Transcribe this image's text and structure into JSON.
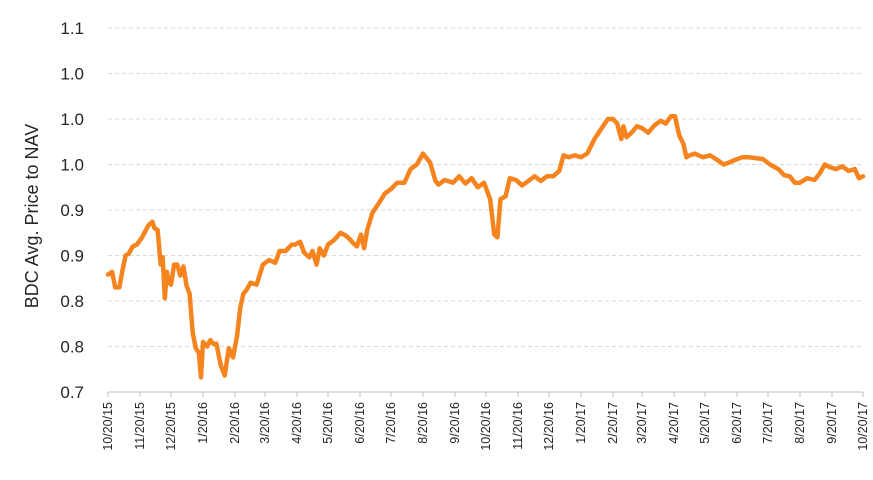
{
  "chart_data": {
    "type": "line",
    "title": "",
    "xlabel": "",
    "ylabel": "BDC Avg. Price to NAV",
    "ylim": [
      0.7,
      1.1
    ],
    "y_tick_values": [
      0.7,
      0.75,
      0.8,
      0.85,
      0.9,
      0.95,
      1.0,
      1.05,
      1.1
    ],
    "y_tick_labels": [
      "0.7",
      "0.8",
      "0.8",
      "0.9",
      "0.9",
      "1.0",
      "1.0",
      "1.0",
      "1.1"
    ],
    "x_tick_labels": [
      "10/20/15",
      "11/20/15",
      "12/20/15",
      "1/20/16",
      "2/20/16",
      "3/20/16",
      "4/20/16",
      "5/20/16",
      "6/20/16",
      "7/20/16",
      "8/20/16",
      "9/20/16",
      "10/20/16",
      "11/20/16",
      "12/20/16",
      "1/20/17",
      "2/20/17",
      "3/20/17",
      "4/20/17",
      "5/20/17",
      "6/20/17",
      "7/20/17",
      "8/20/17",
      "9/20/17",
      "10/20/17"
    ],
    "grid": true,
    "color": "#f5841f",
    "series": [
      {
        "name": "",
        "points": [
          [
            "10/20/15",
            0.829
          ],
          [
            "10/24/15",
            0.832
          ],
          [
            "10/27/15",
            0.815
          ],
          [
            "10/31/15",
            0.815
          ],
          [
            "11/3/15",
            0.834
          ],
          [
            "11/6/15",
            0.85
          ],
          [
            "11/9/15",
            0.852
          ],
          [
            "11/13/15",
            0.86
          ],
          [
            "11/17/15",
            0.862
          ],
          [
            "11/22/15",
            0.87
          ],
          [
            "11/28/15",
            0.883
          ],
          [
            "12/2/15",
            0.887
          ],
          [
            "12/4/15",
            0.88
          ],
          [
            "12/7/15",
            0.878
          ],
          [
            "12/10/15",
            0.84
          ],
          [
            "12/12/15",
            0.848
          ],
          [
            "12/14/15",
            0.803
          ],
          [
            "12/16/15",
            0.832
          ],
          [
            "12/18/15",
            0.82
          ],
          [
            "12/20/15",
            0.818
          ],
          [
            "12/23/15",
            0.84
          ],
          [
            "12/26/15",
            0.84
          ],
          [
            "12/29/15",
            0.828
          ],
          [
            "1/1/16",
            0.838
          ],
          [
            "1/4/16",
            0.817
          ],
          [
            "1/7/16",
            0.808
          ],
          [
            "1/10/16",
            0.765
          ],
          [
            "1/13/16",
            0.748
          ],
          [
            "1/16/16",
            0.743
          ],
          [
            "1/18/16",
            0.716
          ],
          [
            "1/20/16",
            0.755
          ],
          [
            "1/24/16",
            0.75
          ],
          [
            "1/27/16",
            0.757
          ],
          [
            "1/30/16",
            0.753
          ],
          [
            "2/2/16",
            0.753
          ],
          [
            "2/6/16",
            0.73
          ],
          [
            "2/10/16",
            0.718
          ],
          [
            "2/14/16",
            0.748
          ],
          [
            "2/18/16",
            0.738
          ],
          [
            "2/22/16",
            0.762
          ],
          [
            "2/25/16",
            0.792
          ],
          [
            "2/28/16",
            0.808
          ],
          [
            "3/2/16",
            0.812
          ],
          [
            "3/6/16",
            0.82
          ],
          [
            "3/12/16",
            0.818
          ],
          [
            "3/18/16",
            0.84
          ],
          [
            "3/24/16",
            0.845
          ],
          [
            "3/30/16",
            0.842
          ],
          [
            "4/3/16",
            0.855
          ],
          [
            "4/9/16",
            0.855
          ],
          [
            "4/15/16",
            0.862
          ],
          [
            "4/18/16",
            0.862
          ],
          [
            "4/23/16",
            0.865
          ],
          [
            "4/27/16",
            0.853
          ],
          [
            "5/2/16",
            0.848
          ],
          [
            "5/5/16",
            0.855
          ],
          [
            "5/9/16",
            0.84
          ],
          [
            "5/12/16",
            0.858
          ],
          [
            "5/16/16",
            0.85
          ],
          [
            "5/20/16",
            0.862
          ],
          [
            "5/26/16",
            0.867
          ],
          [
            "6/1/16",
            0.875
          ],
          [
            "6/6/16",
            0.872
          ],
          [
            "6/10/16",
            0.868
          ],
          [
            "6/14/16",
            0.863
          ],
          [
            "6/17/16",
            0.86
          ],
          [
            "6/21/16",
            0.873
          ],
          [
            "6/24/16",
            0.858
          ],
          [
            "6/27/16",
            0.878
          ],
          [
            "7/2/16",
            0.897
          ],
          [
            "7/8/16",
            0.907
          ],
          [
            "7/14/16",
            0.918
          ],
          [
            "7/20/16",
            0.923
          ],
          [
            "7/26/16",
            0.93
          ],
          [
            "8/2/16",
            0.93
          ],
          [
            "8/8/16",
            0.945
          ],
          [
            "8/14/16",
            0.95
          ],
          [
            "8/20/16",
            0.962
          ],
          [
            "8/27/16",
            0.952
          ],
          [
            "9/1/16",
            0.932
          ],
          [
            "9/4/16",
            0.928
          ],
          [
            "9/10/16",
            0.933
          ],
          [
            "9/18/16",
            0.93
          ],
          [
            "9/24/16",
            0.937
          ],
          [
            "9/30/16",
            0.929
          ],
          [
            "10/6/16",
            0.935
          ],
          [
            "10/12/16",
            0.925
          ],
          [
            "10/18/16",
            0.93
          ],
          [
            "10/24/16",
            0.912
          ],
          [
            "10/28/16",
            0.873
          ],
          [
            "10/31/16",
            0.87
          ],
          [
            "11/3/16",
            0.912
          ],
          [
            "11/8/16",
            0.915
          ],
          [
            "11/12/16",
            0.935
          ],
          [
            "11/18/16",
            0.933
          ],
          [
            "11/24/16",
            0.927
          ],
          [
            "11/30/16",
            0.932
          ],
          [
            "12/6/16",
            0.937
          ],
          [
            "12/12/16",
            0.932
          ],
          [
            "12/18/16",
            0.937
          ],
          [
            "12/24/16",
            0.937
          ],
          [
            "12/30/16",
            0.943
          ],
          [
            "1/3/17",
            0.96
          ],
          [
            "1/8/17",
            0.958
          ],
          [
            "1/14/17",
            0.96
          ],
          [
            "1/20/17",
            0.958
          ],
          [
            "1/26/17",
            0.962
          ],
          [
            "2/2/17",
            0.978
          ],
          [
            "2/9/17",
            0.99
          ],
          [
            "2/15/17",
            1.0
          ],
          [
            "2/20/17",
            1.0
          ],
          [
            "2/24/17",
            0.995
          ],
          [
            "2/28/17",
            0.978
          ],
          [
            "3/2/17",
            0.992
          ],
          [
            "3/5/17",
            0.98
          ],
          [
            "3/10/17",
            0.985
          ],
          [
            "3/15/17",
            0.992
          ],
          [
            "3/20/17",
            0.99
          ],
          [
            "3/26/17",
            0.985
          ],
          [
            "4/1/17",
            0.993
          ],
          [
            "4/7/17",
            0.998
          ],
          [
            "4/12/17",
            0.995
          ],
          [
            "4/17/17",
            1.003
          ],
          [
            "4/21/17",
            1.003
          ],
          [
            "4/25/17",
            0.982
          ],
          [
            "4/29/17",
            0.973
          ],
          [
            "5/2/17",
            0.958
          ],
          [
            "5/5/17",
            0.96
          ],
          [
            "5/10/17",
            0.962
          ],
          [
            "5/18/17",
            0.958
          ],
          [
            "5/25/17",
            0.96
          ],
          [
            "6/1/17",
            0.955
          ],
          [
            "6/7/17",
            0.95
          ],
          [
            "6/12/17",
            0.952
          ],
          [
            "6/18/17",
            0.955
          ],
          [
            "6/25/17",
            0.958
          ],
          [
            "7/1/17",
            0.958
          ],
          [
            "7/8/17",
            0.957
          ],
          [
            "7/15/17",
            0.956
          ],
          [
            "7/22/17",
            0.95
          ],
          [
            "7/30/17",
            0.945
          ],
          [
            "8/5/17",
            0.938
          ],
          [
            "8/10/17",
            0.937
          ],
          [
            "8/15/17",
            0.93
          ],
          [
            "8/20/17",
            0.93
          ],
          [
            "8/27/17",
            0.935
          ],
          [
            "9/3/17",
            0.933
          ],
          [
            "9/8/17",
            0.94
          ],
          [
            "9/13/17",
            0.95
          ],
          [
            "9/18/17",
            0.947
          ],
          [
            "9/24/17",
            0.945
          ],
          [
            "9/30/17",
            0.948
          ],
          [
            "10/6/17",
            0.943
          ],
          [
            "10/12/17",
            0.945
          ],
          [
            "10/16/17",
            0.935
          ],
          [
            "10/20/17",
            0.937
          ]
        ]
      }
    ]
  }
}
